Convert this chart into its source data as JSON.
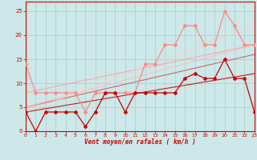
{
  "xlabel": "Vent moyen/en rafales ( km/h )",
  "background_color": "#cce8e8",
  "grid_color": "#aacccc",
  "xmin": 0,
  "xmax": 23,
  "ymin": 0,
  "ymax": 27,
  "yticks": [
    0,
    5,
    10,
    15,
    20,
    25
  ],
  "xticks": [
    0,
    1,
    2,
    3,
    4,
    5,
    6,
    7,
    8,
    9,
    10,
    11,
    12,
    13,
    14,
    15,
    16,
    17,
    18,
    19,
    20,
    21,
    22,
    23
  ],
  "line_dark_red": {
    "x": [
      0,
      1,
      2,
      3,
      4,
      5,
      6,
      7,
      8,
      9,
      10,
      11,
      12,
      13,
      14,
      15,
      16,
      17,
      18,
      19,
      20,
      21,
      22,
      23
    ],
    "y": [
      4,
      0,
      4,
      4,
      4,
      4,
      1,
      4,
      8,
      8,
      4,
      8,
      8,
      8,
      8,
      8,
      11,
      12,
      11,
      11,
      15,
      11,
      11,
      4
    ],
    "color": "#cc0000",
    "lw": 0.9,
    "marker": "D",
    "ms": 2.0
  },
  "line_pink": {
    "x": [
      0,
      1,
      2,
      3,
      4,
      5,
      6,
      7,
      8,
      9,
      10,
      11,
      12,
      13,
      14,
      15,
      16,
      17,
      18,
      19,
      20,
      21,
      22,
      23
    ],
    "y": [
      14,
      8,
      8,
      8,
      8,
      8,
      4,
      8,
      8,
      8,
      8,
      8,
      14,
      14,
      18,
      18,
      22,
      22,
      18,
      18,
      25,
      22,
      18,
      18
    ],
    "color": "#ff8888",
    "lw": 0.9,
    "marker": "D",
    "ms": 2.0
  },
  "trend_lines": [
    {
      "x": [
        0,
        23
      ],
      "y": [
        4,
        12
      ],
      "color": "#cc0000",
      "lw": 0.8,
      "alpha": 0.9
    },
    {
      "x": [
        0,
        23
      ],
      "y": [
        5,
        16
      ],
      "color": "#cc3333",
      "lw": 0.8,
      "alpha": 0.7
    },
    {
      "x": [
        0,
        23
      ],
      "y": [
        8,
        18
      ],
      "color": "#ff9999",
      "lw": 0.8,
      "alpha": 0.8
    },
    {
      "x": [
        0,
        23
      ],
      "y": [
        5,
        18
      ],
      "color": "#ffbbbb",
      "lw": 0.8,
      "alpha": 0.9
    },
    {
      "x": [
        0,
        23
      ],
      "y": [
        4,
        22
      ],
      "color": "#ffcccc",
      "lw": 0.8,
      "alpha": 0.9
    }
  ]
}
